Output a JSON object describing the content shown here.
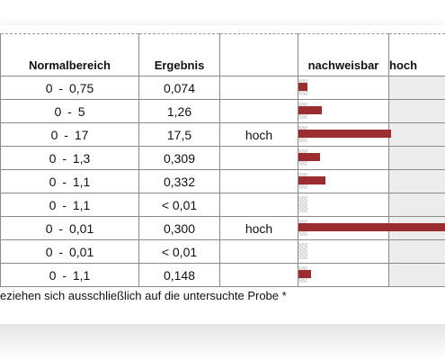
{
  "headers": {
    "normal": "Normalbereich",
    "result": "Ergebnis",
    "flag": "",
    "detectable": "nachweisbar",
    "high": "hoch"
  },
  "bar_scale_max": 1.7,
  "bar_color": "#9b2d30",
  "rows": [
    {
      "range": "0  -  0,75",
      "result": "0,074",
      "flag": "",
      "bar": 0.1
    },
    {
      "range": "0  -  5",
      "result": "1,26",
      "flag": "",
      "bar": 0.26
    },
    {
      "range": "0  -  17",
      "result": "17,5",
      "flag": "hoch",
      "bar": 1.03
    },
    {
      "range": "0  -  1,3",
      "result": "0,309",
      "flag": "",
      "bar": 0.24
    },
    {
      "range": "0  -  1,1",
      "result": "0,332",
      "flag": "",
      "bar": 0.3
    },
    {
      "range": "0  -  1,1",
      "result": "< 0,01",
      "flag": "",
      "bar": 0.0
    },
    {
      "range": "0  -  0,01",
      "result": "0,300",
      "flag": "hoch",
      "bar": 1.7
    },
    {
      "range": "0  -  0,01",
      "result": "< 0,01",
      "flag": "",
      "bar": 0.0
    },
    {
      "range": "0  -  1,1",
      "result": "0,148",
      "flag": "",
      "bar": 0.14
    }
  ],
  "footnote": "eziehen sich ausschließlich auf die untersuchte Probe *"
}
